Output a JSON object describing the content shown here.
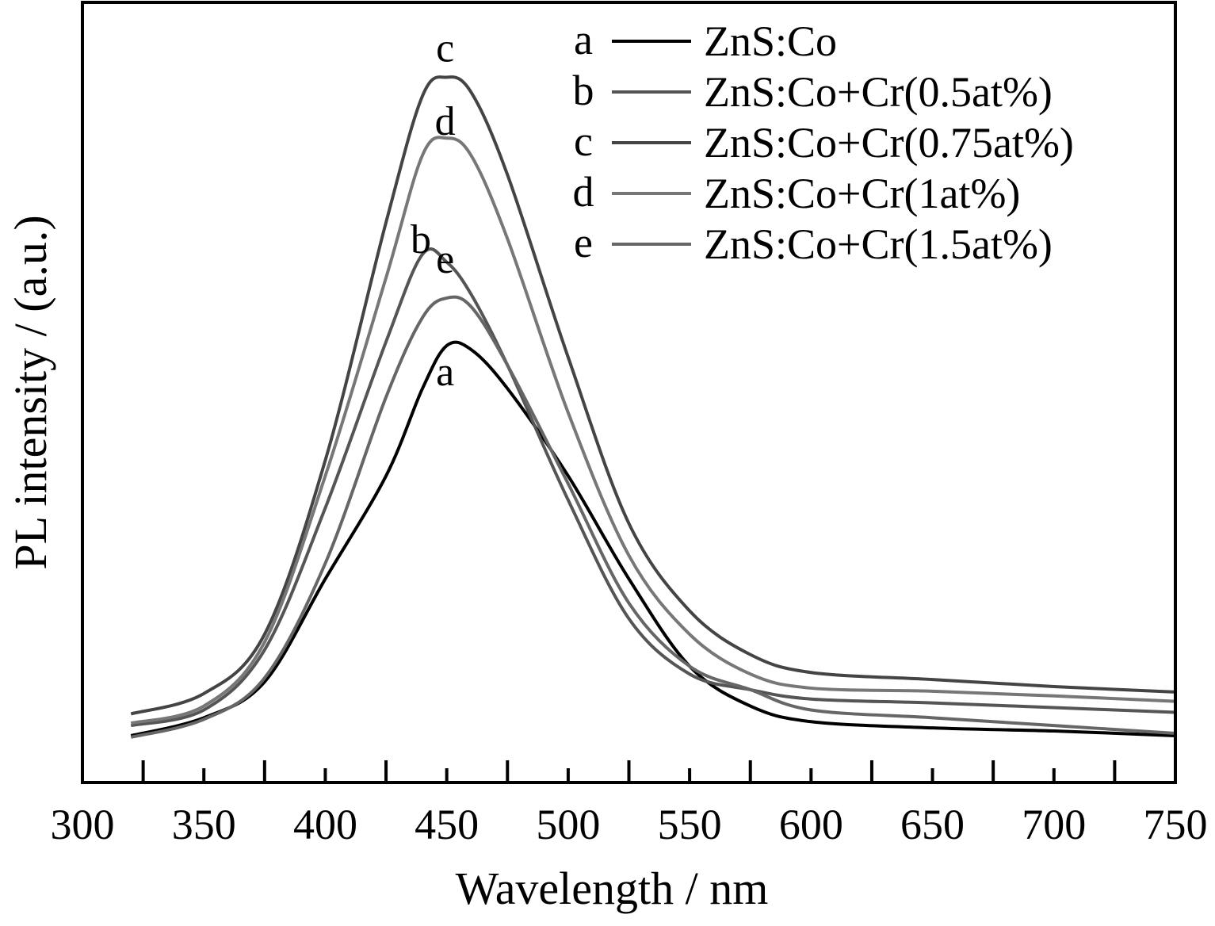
{
  "chart_data": {
    "type": "line",
    "title": "",
    "xlabel": "Wavelength / nm",
    "ylabel": "PL intensity / (a.u.)",
    "xlim": [
      300,
      750
    ],
    "ylim": [
      0,
      100
    ],
    "x_ticks": [
      300,
      350,
      400,
      450,
      500,
      550,
      600,
      650,
      700,
      750
    ],
    "x_ticks_minor_step": 25,
    "grid": false,
    "legend": "top-right",
    "x": [
      320,
      350,
      375,
      400,
      425,
      440,
      450,
      460,
      475,
      500,
      525,
      550,
      575,
      600,
      650,
      700,
      750
    ],
    "series": [
      {
        "key": "a",
        "name": "ZnS:Co",
        "color": "#000000",
        "label_at": 450,
        "values": [
          6.0,
          8.3,
          12.9,
          26.1,
          39.3,
          50.5,
          56.0,
          55.5,
          50.5,
          39.3,
          26.1,
          14.9,
          9.8,
          7.8,
          7.0,
          6.6,
          6.0
        ]
      },
      {
        "key": "b",
        "name": "ZnS:Co+Cr(0.5at%)",
        "color": "#555555",
        "label_at": 440,
        "values": [
          7.3,
          9.3,
          17.0,
          35.2,
          56.5,
          67.7,
          66.7,
          62.6,
          53.5,
          36.2,
          21.0,
          13.9,
          11.9,
          10.7,
          10.2,
          9.6,
          9.0
        ]
      },
      {
        "key": "c",
        "name": "ZnS:Co+Cr(0.75at%)",
        "color": "#444444",
        "label_at": 450,
        "values": [
          8.8,
          11.4,
          19.0,
          41.3,
          71.8,
          88.0,
          90.4,
          88.5,
          77.9,
          54.5,
          33.2,
          22.0,
          16.4,
          14.1,
          13.2,
          12.3,
          11.6
        ]
      },
      {
        "key": "d",
        "name": "ZnS:Co+Cr(1at%)",
        "color": "#777777",
        "label_at": 450,
        "values": [
          7.6,
          9.8,
          18.0,
          39.3,
          64.7,
          80.4,
          82.6,
          80.4,
          69.7,
          47.4,
          29.1,
          19.0,
          13.9,
          12.1,
          11.7,
          11.1,
          10.4
        ]
      },
      {
        "key": "e",
        "name": "ZnS:Co+Cr(1.5at%)",
        "color": "#666666",
        "label_at": 450,
        "values": [
          5.8,
          8.1,
          13.4,
          28.1,
          49.4,
          59.6,
          62.1,
          61.0,
          53.5,
          38.3,
          23.0,
          14.9,
          11.9,
          9.3,
          8.3,
          7.3,
          6.3
        ]
      }
    ]
  }
}
